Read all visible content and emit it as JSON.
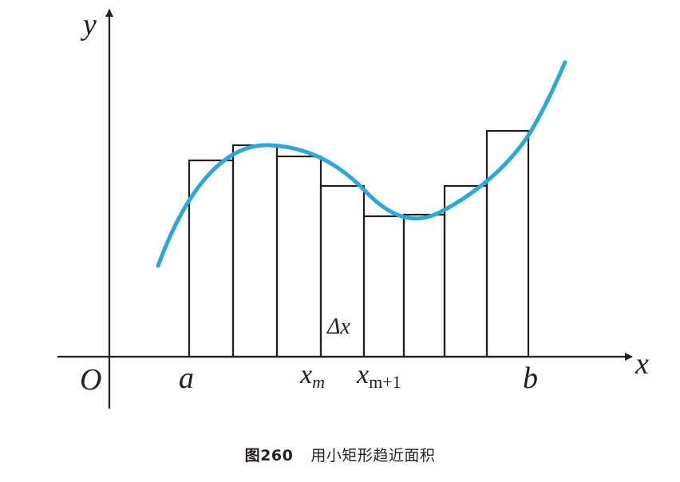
{
  "diagram": {
    "axis_x_label": "x",
    "axis_y_label": "y",
    "origin_label": "O",
    "label_a": "a",
    "label_b": "b",
    "label_xm_base": "x",
    "label_xm_sub": "m",
    "label_xm1_base": "x",
    "label_xm1_sub": "m+1",
    "label_dx": "Δx",
    "rect_count": 8,
    "curve_color": "#2aa7dc",
    "stroke_color": "#231f20"
  },
  "caption": {
    "number": "图260",
    "text": "用小矩形趋近面积"
  }
}
